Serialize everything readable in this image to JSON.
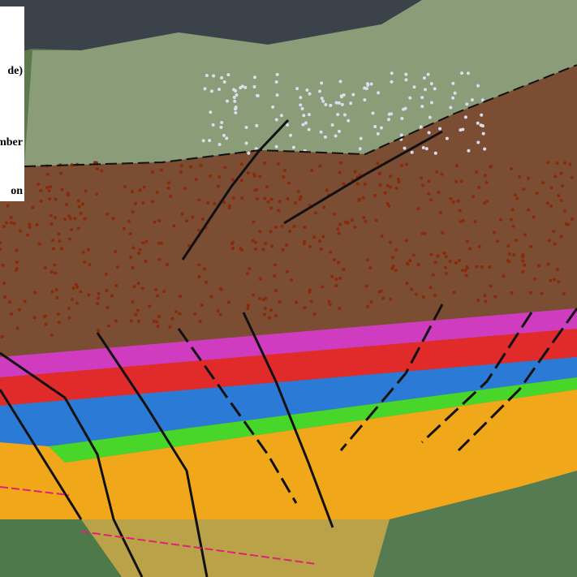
{
  "legend": {
    "items": [
      "de)",
      "mber",
      "on"
    ]
  }
}
